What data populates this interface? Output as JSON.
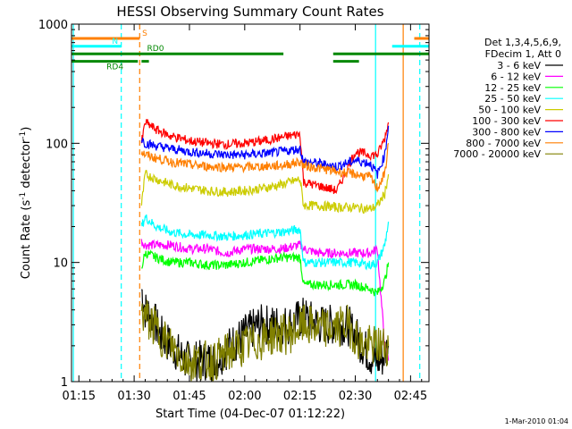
{
  "chart_data": {
    "type": "line",
    "title": "HESSI Observing Summary Count Rates",
    "xlabel": "Start Time (04-Dec-07 01:12:22)",
    "ylabel_main": "Count Rate (s",
    "ylabel_sup1": "-1",
    "ylabel_mid": " detector",
    "ylabel_sup2": "-1",
    "ylabel_end": ")",
    "y_scale": "log",
    "ylim": [
      1,
      1000
    ],
    "xlim_min": [
      73,
      170
    ],
    "x_ticks": [
      {
        "min": 75,
        "label": "01:15"
      },
      {
        "min": 90,
        "label": "01:30"
      },
      {
        "min": 105,
        "label": "01:45"
      },
      {
        "min": 120,
        "label": "02:00"
      },
      {
        "min": 135,
        "label": "02:15"
      },
      {
        "min": 150,
        "label": "02:30"
      },
      {
        "min": 165,
        "label": "02:45"
      }
    ],
    "y_ticks": [
      {
        "value": 1,
        "label": "1"
      },
      {
        "value": 10,
        "label": "10"
      },
      {
        "value": 100,
        "label": "100"
      },
      {
        "value": 1000,
        "label": "1000"
      }
    ],
    "legend_header": [
      "Det 1,3,4,5,6,9,",
      "FDecim 1, Att 0"
    ],
    "legend_placement": "right",
    "series": [
      {
        "name": "3 - 6 keV",
        "color": "#000000",
        "x": [
          92,
          93,
          95,
          97,
          100,
          104,
          108,
          112,
          116,
          120,
          124,
          128,
          132,
          136,
          140,
          144,
          148,
          152,
          155,
          157,
          159
        ],
        "y": [
          6,
          4,
          3.5,
          2.5,
          2,
          1.5,
          1.5,
          1.5,
          2,
          2.5,
          3,
          3,
          3,
          3.5,
          3,
          3,
          3,
          2,
          1.5,
          1.5,
          2
        ]
      },
      {
        "name": "6 - 12 keV",
        "color": "#ff00ff",
        "x": [
          92,
          93,
          96,
          100,
          105,
          110,
          115,
          120,
          125,
          130,
          135,
          136,
          140,
          145,
          150,
          154,
          156,
          157,
          158,
          159
        ],
        "y": [
          15,
          14,
          14,
          14,
          13,
          13,
          12,
          13,
          13,
          13,
          14,
          13,
          12,
          12,
          12,
          12,
          13,
          5,
          2,
          1.5
        ]
      },
      {
        "name": "12 - 25 keV",
        "color": "#00ff00",
        "x": [
          92,
          93,
          96,
          100,
          105,
          110,
          115,
          120,
          125,
          130,
          135,
          136,
          140,
          145,
          150,
          154,
          156,
          158,
          159
        ],
        "y": [
          9,
          12,
          11,
          10,
          10,
          9.5,
          9.5,
          10,
          10.5,
          11,
          11,
          6.5,
          6.5,
          6.5,
          6.5,
          6,
          5.5,
          7,
          10
        ]
      },
      {
        "name": "25 - 50 keV",
        "color": "#00ffff",
        "x": [
          92,
          93,
          96,
          100,
          105,
          110,
          115,
          120,
          125,
          130,
          135,
          136,
          140,
          145,
          150,
          154,
          156,
          158,
          159
        ],
        "y": [
          20,
          24,
          20,
          18,
          17,
          17,
          16.5,
          17,
          17.5,
          18,
          19,
          10,
          10,
          10,
          10,
          9.5,
          10,
          14,
          22
        ]
      },
      {
        "name": "50 - 100 keV",
        "color": "#cccc00",
        "x": [
          92,
          93,
          96,
          100,
          105,
          110,
          115,
          120,
          125,
          130,
          135,
          136,
          140,
          145,
          150,
          154,
          156,
          158,
          159
        ],
        "y": [
          30,
          55,
          50,
          45,
          42,
          40,
          39,
          40,
          42,
          45,
          50,
          30,
          30,
          29,
          29,
          28,
          30,
          38,
          55
        ]
      },
      {
        "name": "100 - 300 keV",
        "color": "#ff0000",
        "x": [
          92,
          93,
          96,
          100,
          105,
          110,
          115,
          120,
          125,
          130,
          135,
          136,
          140,
          145,
          150,
          154,
          156,
          158,
          159
        ],
        "y": [
          100,
          150,
          130,
          115,
          105,
          100,
          98,
          100,
          105,
          112,
          120,
          47,
          44,
          40,
          85,
          80,
          80,
          110,
          150
        ]
      },
      {
        "name": "300 - 800 keV",
        "color": "#0000ff",
        "x": [
          92,
          93,
          96,
          100,
          105,
          110,
          115,
          120,
          125,
          130,
          135,
          136,
          140,
          145,
          150,
          154,
          156,
          158,
          159
        ],
        "y": [
          110,
          100,
          95,
          90,
          85,
          82,
          80,
          80,
          82,
          85,
          90,
          70,
          68,
          64,
          72,
          68,
          55,
          80,
          140
        ]
      },
      {
        "name": "800 - 7000 keV",
        "color": "#ff7f00",
        "x": [
          92,
          93,
          96,
          100,
          105,
          110,
          115,
          120,
          125,
          130,
          135,
          136,
          140,
          145,
          150,
          154,
          156,
          158,
          159
        ],
        "y": [
          85,
          80,
          75,
          70,
          66,
          64,
          63,
          63,
          64,
          65,
          70,
          65,
          62,
          58,
          55,
          52,
          42,
          55,
          100
        ]
      },
      {
        "name": "7000 - 20000 keV",
        "color": "#808000",
        "x": [
          92,
          93,
          95,
          97,
          100,
          104,
          108,
          112,
          116,
          120,
          124,
          128,
          132,
          136,
          140,
          144,
          148,
          152,
          155,
          157,
          159
        ],
        "y": [
          4,
          3.5,
          3,
          2.5,
          2,
          1.5,
          1.5,
          1.5,
          1.8,
          2,
          2.2,
          2.5,
          2.5,
          3,
          2.8,
          2.8,
          3,
          2,
          2,
          2,
          2
        ]
      }
    ],
    "vertical_lines": [
      {
        "min": 73.5,
        "color": "#00ffff",
        "style": "solid"
      },
      {
        "min": 86.5,
        "color": "#00ffff",
        "style": "dashed"
      },
      {
        "min": 91.5,
        "color": "#ff7f00",
        "style": "dashed"
      },
      {
        "min": 155.5,
        "color": "#00ffff",
        "style": "solid"
      },
      {
        "min": 163,
        "color": "#ff7f00",
        "style": "solid"
      },
      {
        "min": 167.5,
        "color": "#00ffff",
        "style": "dashed"
      }
    ],
    "flag_bars": [
      {
        "color": "#ff7f00",
        "y_frac": 0.04,
        "segments": [
          [
            73,
            91.5
          ],
          [
            166,
            170
          ]
        ],
        "label": "S",
        "label_min": 92.2
      },
      {
        "color": "#00ffff",
        "y_frac": 0.062,
        "segments": [
          [
            73,
            86.5
          ],
          [
            160,
            170
          ]
        ],
        "label": "N",
        "label_min": 84
      },
      {
        "color": "#008800",
        "y_frac": 0.083,
        "segments": [
          [
            73,
            130.5
          ],
          [
            144,
            170
          ]
        ],
        "label": "RD0",
        "label_min": 93.5
      },
      {
        "color": "#008800",
        "y_frac": 0.104,
        "segments": [
          [
            73,
            91
          ],
          [
            92,
            94
          ],
          [
            144,
            151
          ]
        ],
        "label": "RD4",
        "label_min": 82.5
      }
    ]
  },
  "footer": {
    "timestamp": "1-Mar-2010 01:04"
  }
}
